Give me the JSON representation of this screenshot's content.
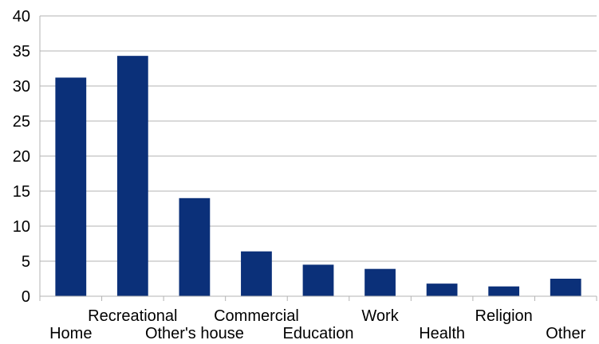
{
  "chart_data": {
    "type": "bar",
    "categories": [
      "Home",
      "Recreational",
      "Other's house",
      "Commercial",
      "Education",
      "Work",
      "Health",
      "Religion",
      "Other"
    ],
    "values": [
      31.2,
      34.3,
      14.0,
      6.4,
      4.5,
      3.9,
      1.8,
      1.4,
      2.5
    ],
    "ylim": [
      0,
      40
    ],
    "yticks": [
      "0",
      "5",
      "10",
      "15",
      "20",
      "25",
      "30",
      "35",
      "40"
    ],
    "grid": true,
    "bar_color": "#0b3079",
    "grid_color": "#b3b3b3"
  }
}
